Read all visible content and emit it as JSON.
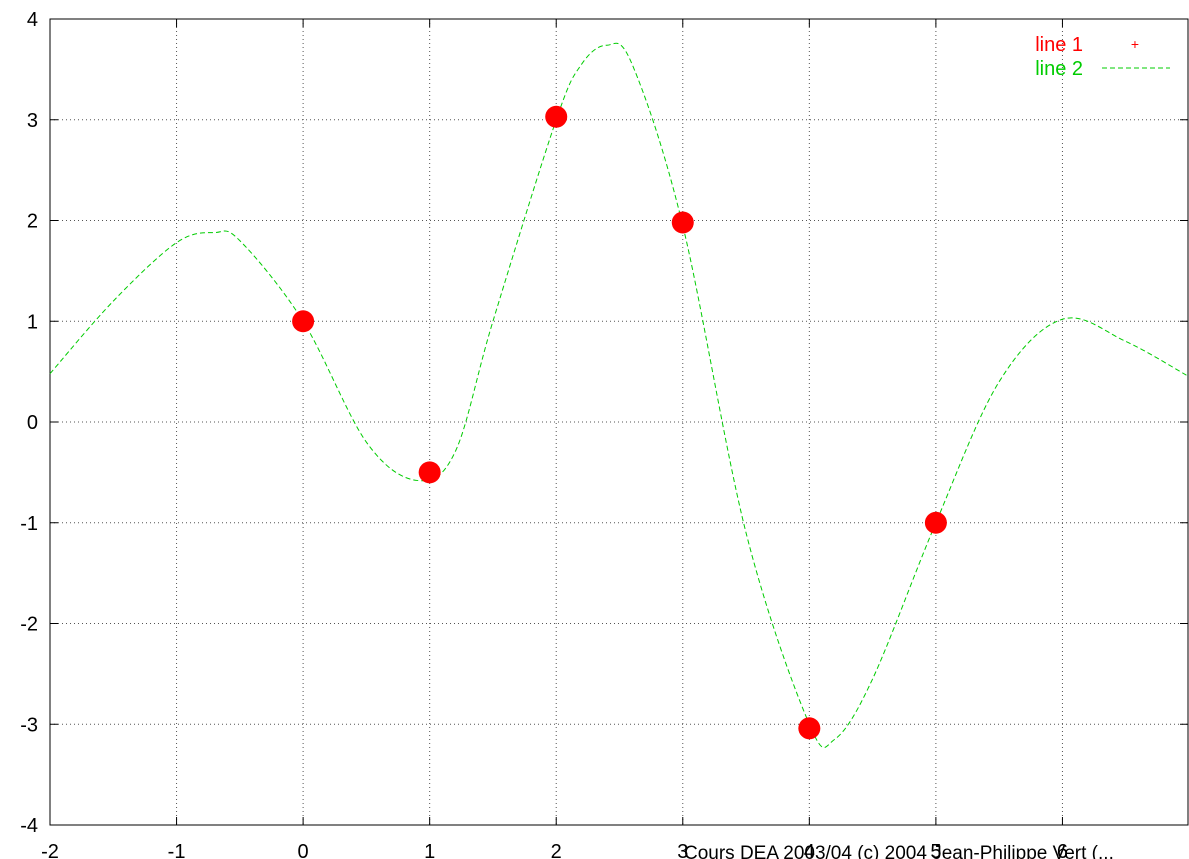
{
  "chart_data": {
    "type": "line",
    "title": "",
    "xlabel": "",
    "ylabel": "",
    "xlim": [
      -2,
      7
    ],
    "ylim": [
      -4,
      4
    ],
    "x_ticks": [
      -2,
      -1,
      0,
      1,
      2,
      3,
      4,
      5,
      6
    ],
    "y_ticks": [
      -4,
      -3,
      -2,
      -1,
      0,
      1,
      2,
      3,
      4
    ],
    "grid": true,
    "legend_position": "top-right",
    "series": [
      {
        "name": "line 1",
        "style": "points",
        "color": "#ff0000",
        "legend_marker": "+",
        "x": [
          0,
          1,
          2,
          3,
          4,
          5
        ],
        "y": [
          1,
          -0.5,
          3.03,
          1.98,
          -3.04,
          -1
        ]
      },
      {
        "name": "line 2",
        "style": "dashed",
        "color": "#00cc00",
        "x": [
          -2,
          -1.5,
          -1,
          -0.7,
          -0.5,
          0,
          0.5,
          0.9,
          1.2,
          1.5,
          2,
          2.2,
          2.4,
          2.6,
          3,
          3.5,
          4,
          4.2,
          4.5,
          5,
          5.5,
          6,
          6.5,
          7
        ],
        "y": [
          0.48,
          1.2,
          1.78,
          1.88,
          1.8,
          1.0,
          -0.2,
          -0.58,
          -0.3,
          1.0,
          3.0,
          3.55,
          3.74,
          3.55,
          1.95,
          -1.1,
          -3.0,
          -3.15,
          -2.55,
          -1.0,
          0.4,
          1.02,
          0.8,
          0.45
        ]
      }
    ]
  },
  "footer": "Cours DEA 2003/04   (c) 2004 Jean-Philippe Vert (..."
}
